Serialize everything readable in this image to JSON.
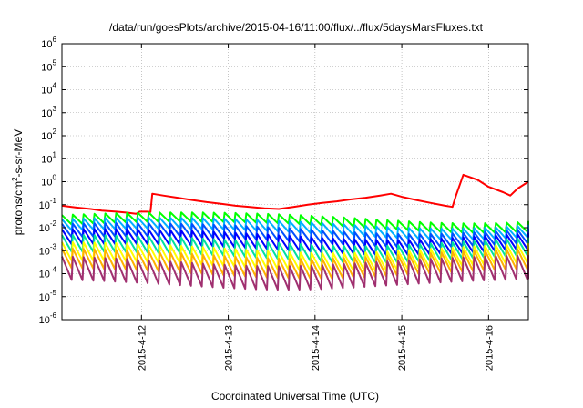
{
  "chart_data": {
    "type": "line",
    "title": "/data/run/goesPlots/archive/2015-04-16/11:00/flux/../flux/5daysMarsFluxes.txt",
    "xlabel": "Coordinated Universal Time (UTC)",
    "ylabel": {
      "prefix": "protons/cm",
      "sup": "2",
      "suffix": "-s-sr-MeV"
    },
    "yscale": "log",
    "ylim_exp": [
      -6,
      6
    ],
    "ytick_base": "10",
    "ytick_exponents": [
      "-6",
      "-5",
      "-4",
      "-3",
      "-2",
      "-1",
      "0",
      "1",
      "2",
      "3",
      "4",
      "5",
      "6"
    ],
    "xlim": [
      "2015-04-11T02:00",
      "2015-04-16T11:00"
    ],
    "xticks": [
      {
        "t": "2015-04-12T00:00",
        "label": "2015-4-12"
      },
      {
        "t": "2015-04-13T00:00",
        "label": "2015-4-13"
      },
      {
        "t": "2015-04-14T00:00",
        "label": "2015-4-14"
      },
      {
        "t": "2015-04-15T00:00",
        "label": "2015-4-15"
      },
      {
        "t": "2015-04-16T00:00",
        "label": "2015-4-16"
      }
    ],
    "grid": true,
    "legend": "none",
    "series": [
      {
        "color": "#ff0000",
        "points": [
          [
            "2015-04-11T02:00",
            0.09
          ],
          [
            "2015-04-11T06:00",
            0.075
          ],
          [
            "2015-04-11T10:00",
            0.065
          ],
          [
            "2015-04-11T13:00",
            0.055
          ],
          [
            "2015-04-11T17:00",
            0.05
          ],
          [
            "2015-04-11T20:00",
            0.045
          ],
          [
            "2015-04-11T22:30",
            0.04
          ],
          [
            "2015-04-11T23:30",
            0.05
          ],
          [
            "2015-04-12T01:30",
            0.05
          ],
          [
            "2015-04-12T02:30",
            0.048
          ],
          [
            "2015-04-12T03:00",
            0.3
          ],
          [
            "2015-04-12T06:00",
            0.25
          ],
          [
            "2015-04-12T10:00",
            0.2
          ],
          [
            "2015-04-12T14:00",
            0.16
          ],
          [
            "2015-04-12T18:00",
            0.13
          ],
          [
            "2015-04-12T22:00",
            0.11
          ],
          [
            "2015-04-13T02:00",
            0.09
          ],
          [
            "2015-04-13T06:00",
            0.08
          ],
          [
            "2015-04-13T10:00",
            0.07
          ],
          [
            "2015-04-13T14:00",
            0.065
          ],
          [
            "2015-04-13T18:00",
            0.08
          ],
          [
            "2015-04-13T22:00",
            0.1
          ],
          [
            "2015-04-14T02:00",
            0.12
          ],
          [
            "2015-04-14T06:00",
            0.14
          ],
          [
            "2015-04-14T10:00",
            0.17
          ],
          [
            "2015-04-14T14:00",
            0.2
          ],
          [
            "2015-04-14T18:00",
            0.25
          ],
          [
            "2015-04-14T21:00",
            0.3
          ],
          [
            "2015-04-15T00:00",
            0.22
          ],
          [
            "2015-04-15T04:00",
            0.16
          ],
          [
            "2015-04-15T08:00",
            0.12
          ],
          [
            "2015-04-15T12:00",
            0.09
          ],
          [
            "2015-04-15T14:00",
            0.08
          ],
          [
            "2015-04-15T15:00",
            0.25
          ],
          [
            "2015-04-15T17:00",
            2.0
          ],
          [
            "2015-04-15T21:00",
            1.2
          ],
          [
            "2015-04-16T00:00",
            0.6
          ],
          [
            "2015-04-16T04:00",
            0.35
          ],
          [
            "2015-04-16T06:00",
            0.25
          ],
          [
            "2015-04-16T08:00",
            0.5
          ],
          [
            "2015-04-16T11:00",
            1.0
          ]
        ]
      },
      {
        "color": "#00ff00",
        "base": 0.012,
        "mid": 0.02,
        "amp": 2.2
      },
      {
        "color": "#00b0ff",
        "base": 0.006,
        "mid": 0.01,
        "amp": 2.6
      },
      {
        "color": "#0050ff",
        "base": 0.0028,
        "mid": 0.005,
        "amp": 3.0
      },
      {
        "color": "#0000ff",
        "base": 0.0013,
        "mid": 0.0025,
        "amp": 3.3
      },
      {
        "color": "#00e0a0",
        "base": 0.0006,
        "mid": 0.0012,
        "amp": 3.8
      },
      {
        "color": "#ffff00",
        "base": 0.00025,
        "mid": 0.0005,
        "amp": 4.5
      },
      {
        "color": "#ffb000",
        "base": 0.00012,
        "mid": 0.00025,
        "amp": 5.0
      },
      {
        "color": "#a03070",
        "base": 4e-05,
        "mid": 0.0001,
        "amp": 6.0
      }
    ],
    "sawtooth_period_hours": 3
  }
}
